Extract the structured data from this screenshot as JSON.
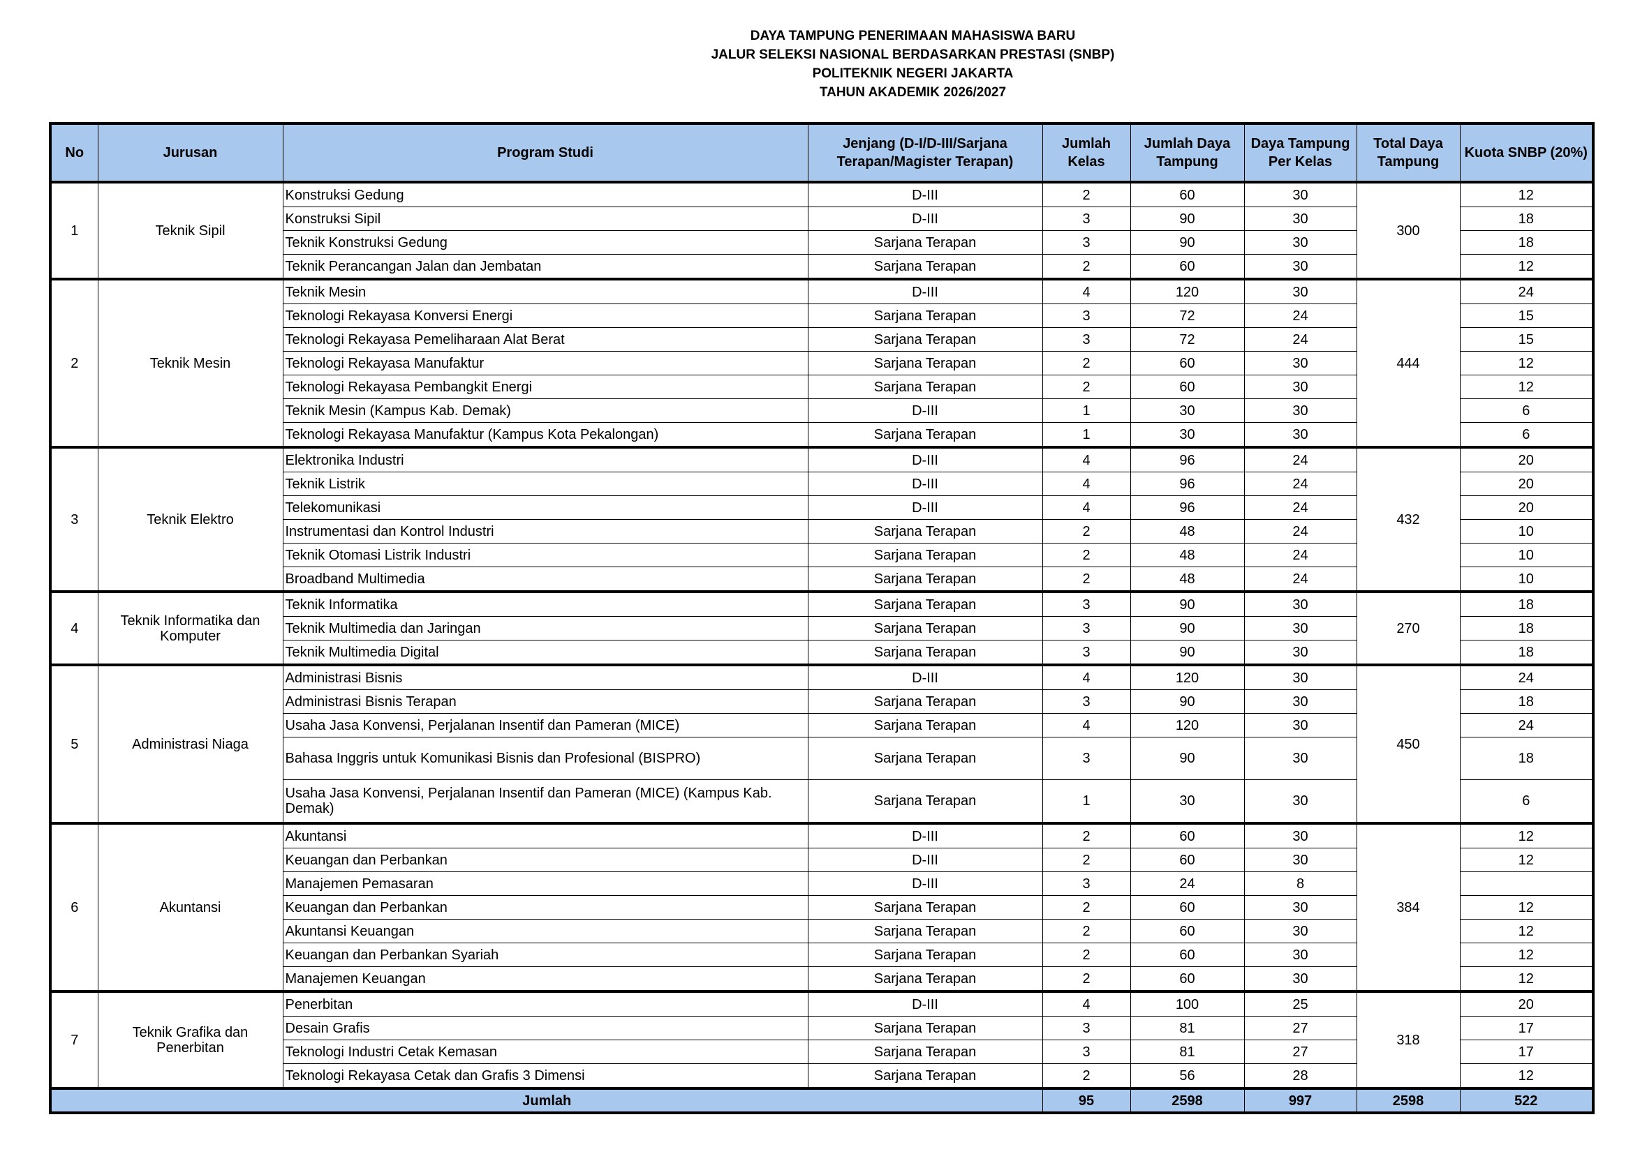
{
  "title_lines": [
    "DAYA TAMPUNG PENERIMAAN MAHASISWA BARU",
    "JALUR SELEKSI NASIONAL BERDASARKAN PRESTASI (SNBP)",
    "POLITEKNIK NEGERI JAKARTA",
    "TAHUN AKADEMIK 2026/2027"
  ],
  "headers": [
    "No",
    "Jurusan",
    "Program Studi",
    "Jenjang (D-I/D-III/Sarjana Terapan/Magister Terapan)",
    "Jumlah Kelas",
    "Jumlah Daya Tampung",
    "Daya Tampung Per Kelas",
    "Total Daya Tampung",
    "Kuota SNBP (20%)"
  ],
  "header_color": "#a9c8ee",
  "groups": [
    {
      "no": "1",
      "jurusan": "Teknik Sipil",
      "total": "300",
      "rows": [
        [
          "Konstruksi Gedung",
          "D-III",
          "2",
          "60",
          "30",
          "12"
        ],
        [
          "Konstruksi Sipil",
          "D-III",
          "3",
          "90",
          "30",
          "18"
        ],
        [
          "Teknik Konstruksi Gedung",
          "Sarjana Terapan",
          "3",
          "90",
          "30",
          "18"
        ],
        [
          "Teknik Perancangan Jalan dan Jembatan",
          "Sarjana Terapan",
          "2",
          "60",
          "30",
          "12"
        ]
      ]
    },
    {
      "no": "2",
      "jurusan": "Teknik Mesin",
      "total": "444",
      "rows": [
        [
          "Teknik Mesin",
          "D-III",
          "4",
          "120",
          "30",
          "24"
        ],
        [
          "Teknologi Rekayasa Konversi Energi",
          "Sarjana Terapan",
          "3",
          "72",
          "24",
          "15"
        ],
        [
          "Teknologi Rekayasa Pemeliharaan Alat Berat",
          "Sarjana Terapan",
          "3",
          "72",
          "24",
          "15"
        ],
        [
          "Teknologi Rekayasa Manufaktur",
          "Sarjana Terapan",
          "2",
          "60",
          "30",
          "12"
        ],
        [
          "Teknologi Rekayasa Pembangkit  Energi",
          "Sarjana Terapan",
          "2",
          "60",
          "30",
          "12"
        ],
        [
          "Teknik Mesin (Kampus Kab. Demak)",
          "D-III",
          "1",
          "30",
          "30",
          "6"
        ],
        [
          "Teknologi Rekayasa Manufaktur (Kampus Kota Pekalongan)",
          "Sarjana Terapan",
          "1",
          "30",
          "30",
          "6"
        ]
      ]
    },
    {
      "no": "3",
      "jurusan": "Teknik Elektro",
      "total": "432",
      "rows": [
        [
          "Elektronika Industri",
          "D-III",
          "4",
          "96",
          "24",
          "20"
        ],
        [
          "Teknik Listrik",
          "D-III",
          "4",
          "96",
          "24",
          "20"
        ],
        [
          "Telekomunikasi",
          "D-III",
          "4",
          "96",
          "24",
          "20"
        ],
        [
          "Instrumentasi dan Kontrol Industri",
          "Sarjana Terapan",
          "2",
          "48",
          "24",
          "10"
        ],
        [
          "Teknik Otomasi Listrik Industri",
          "Sarjana Terapan",
          "2",
          "48",
          "24",
          "10"
        ],
        [
          "Broadband Multimedia",
          "Sarjana Terapan",
          "2",
          "48",
          "24",
          "10"
        ]
      ]
    },
    {
      "no": "4",
      "jurusan": "Teknik Informatika dan Komputer",
      "total": "270",
      "rows": [
        [
          "Teknik Informatika",
          "Sarjana Terapan",
          "3",
          "90",
          "30",
          "18"
        ],
        [
          "Teknik Multimedia dan Jaringan",
          "Sarjana Terapan",
          "3",
          "90",
          "30",
          "18"
        ],
        [
          "Teknik Multimedia Digital",
          "Sarjana Terapan",
          "3",
          "90",
          "30",
          "18"
        ]
      ]
    },
    {
      "no": "5",
      "jurusan": "Administrasi Niaga",
      "total": "450",
      "rows": [
        [
          "Administrasi Bisnis",
          "D-III",
          "4",
          "120",
          "30",
          "24"
        ],
        [
          "Administrasi Bisnis Terapan",
          "Sarjana Terapan",
          "3",
          "90",
          "30",
          "18"
        ],
        [
          "Usaha Jasa Konvensi, Perjalanan Insentif dan Pameran (MICE)",
          "Sarjana Terapan",
          "4",
          "120",
          "30",
          "24"
        ],
        [
          "Bahasa Inggris untuk Komunikasi Bisnis dan Profesional (BISPRO)",
          "Sarjana Terapan",
          "3",
          "90",
          "30",
          "18"
        ],
        [
          "Usaha Jasa Konvensi, Perjalanan Insentif dan Pameran (MICE) (Kampus Kab. Demak)",
          "Sarjana Terapan",
          "1",
          "30",
          "30",
          "6"
        ]
      ]
    },
    {
      "no": "6",
      "jurusan": "Akuntansi",
      "total": "384",
      "rows": [
        [
          "Akuntansi",
          "D-III",
          "2",
          "60",
          "30",
          "12"
        ],
        [
          "Keuangan dan Perbankan",
          "D-III",
          "2",
          "60",
          "30",
          "12"
        ],
        [
          "Manajemen Pemasaran",
          "D-III",
          "3",
          "24",
          "8",
          ""
        ],
        [
          "Keuangan dan Perbankan",
          "Sarjana Terapan",
          "2",
          "60",
          "30",
          "12"
        ],
        [
          "Akuntansi Keuangan",
          "Sarjana Terapan",
          "2",
          "60",
          "30",
          "12"
        ],
        [
          "Keuangan dan Perbankan Syariah",
          "Sarjana Terapan",
          "2",
          "60",
          "30",
          "12"
        ],
        [
          "Manajemen Keuangan",
          "Sarjana Terapan",
          "2",
          "60",
          "30",
          "12"
        ]
      ]
    },
    {
      "no": "7",
      "jurusan": "Teknik Grafika dan Penerbitan",
      "total": "318",
      "rows": [
        [
          "Penerbitan",
          "D-III",
          "4",
          "100",
          "25",
          "20"
        ],
        [
          "Desain Grafis",
          "Sarjana Terapan",
          "3",
          "81",
          "27",
          "17"
        ],
        [
          "Teknologi Industri Cetak Kemasan",
          "Sarjana Terapan",
          "3",
          "81",
          "27",
          "17"
        ],
        [
          "Teknologi Rekayasa Cetak dan Grafis 3 Dimensi",
          "Sarjana Terapan",
          "2",
          "56",
          "28",
          "12"
        ]
      ]
    }
  ],
  "totals": {
    "label": "Jumlah",
    "kelas": "95",
    "daya_tampung": "2598",
    "per_kelas": "997",
    "total": "2598",
    "kuota": "522"
  }
}
